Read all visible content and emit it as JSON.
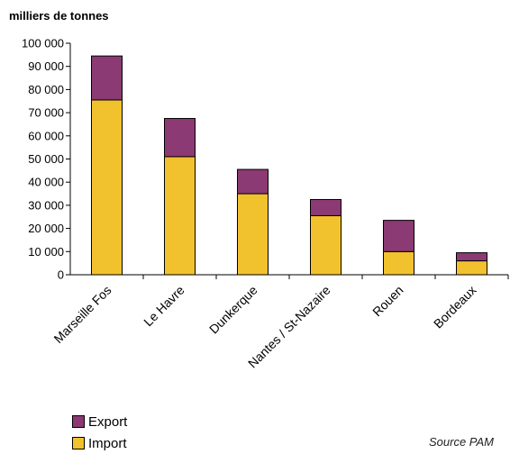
{
  "chart_data": {
    "type": "bar",
    "stacked": true,
    "unit_label": "milliers de tonnes",
    "categories": [
      "Marseille Fos",
      "Le Havre",
      "Dunkerque",
      "Nantes / St-Nazaire",
      "Rouen",
      "Bordeaux"
    ],
    "series": [
      {
        "name": "Import",
        "color": "#F2C12E",
        "values": [
          75500,
          51000,
          35000,
          25500,
          10000,
          6000
        ]
      },
      {
        "name": "Export",
        "color": "#8B3A73",
        "values": [
          19000,
          16500,
          10500,
          7000,
          13500,
          3500
        ]
      }
    ],
    "ylim": [
      0,
      100000
    ],
    "yticks": [
      "0",
      "10 000",
      "20 000",
      "30 000",
      "40 000",
      "50 000",
      "60 000",
      "70 000",
      "80 000",
      "90 000",
      "100 000"
    ],
    "grid": false,
    "legend_position": "bottom-left",
    "source": "Source PAM"
  }
}
